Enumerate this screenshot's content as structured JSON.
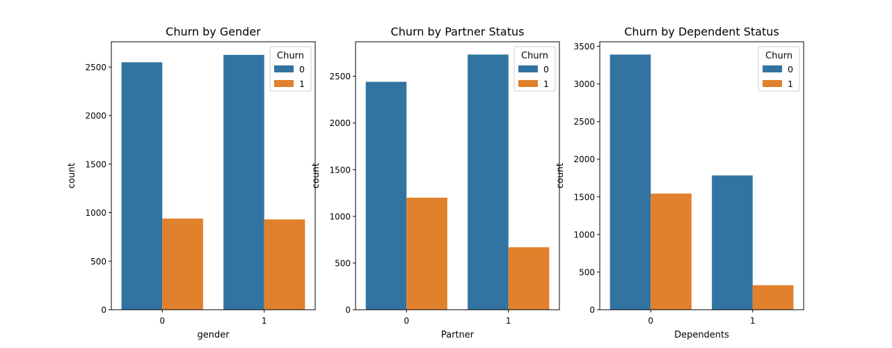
{
  "chart_data": [
    {
      "type": "bar",
      "title": "Churn by Gender",
      "xlabel": "gender",
      "ylabel": "count",
      "categories": [
        "0",
        "1"
      ],
      "series": [
        {
          "name": "0",
          "values": [
            2549,
            2625
          ]
        },
        {
          "name": "1",
          "values": [
            939,
            930
          ]
        }
      ],
      "ylim": [
        0,
        2760
      ],
      "yticks": [
        0,
        500,
        1000,
        1500,
        2000,
        2500
      ],
      "legend": {
        "title": "Churn",
        "placement": "top-right"
      },
      "grid": false
    },
    {
      "type": "bar",
      "title": "Churn by Partner Status",
      "xlabel": "Partner",
      "ylabel": "count",
      "categories": [
        "0",
        "1"
      ],
      "series": [
        {
          "name": "0",
          "values": [
            2441,
            2733
          ]
        },
        {
          "name": "1",
          "values": [
            1200,
            669
          ]
        }
      ],
      "ylim": [
        0,
        2870
      ],
      "yticks": [
        0,
        500,
        1000,
        1500,
        2000,
        2500
      ],
      "legend": {
        "title": "Churn",
        "placement": "top-right"
      },
      "grid": false
    },
    {
      "type": "bar",
      "title": "Churn by Dependent Status",
      "xlabel": "Dependents",
      "ylabel": "count",
      "categories": [
        "0",
        "1"
      ],
      "series": [
        {
          "name": "0",
          "values": [
            3390,
            1784
          ]
        },
        {
          "name": "1",
          "values": [
            1543,
            326
          ]
        }
      ],
      "ylim": [
        0,
        3560
      ],
      "yticks": [
        0,
        500,
        1000,
        1500,
        2000,
        2500,
        3000,
        3500
      ],
      "legend": {
        "title": "Churn",
        "placement": "top-right"
      },
      "grid": false
    }
  ],
  "colors": {
    "series0": "#3274a1",
    "series1": "#e1812c"
  }
}
